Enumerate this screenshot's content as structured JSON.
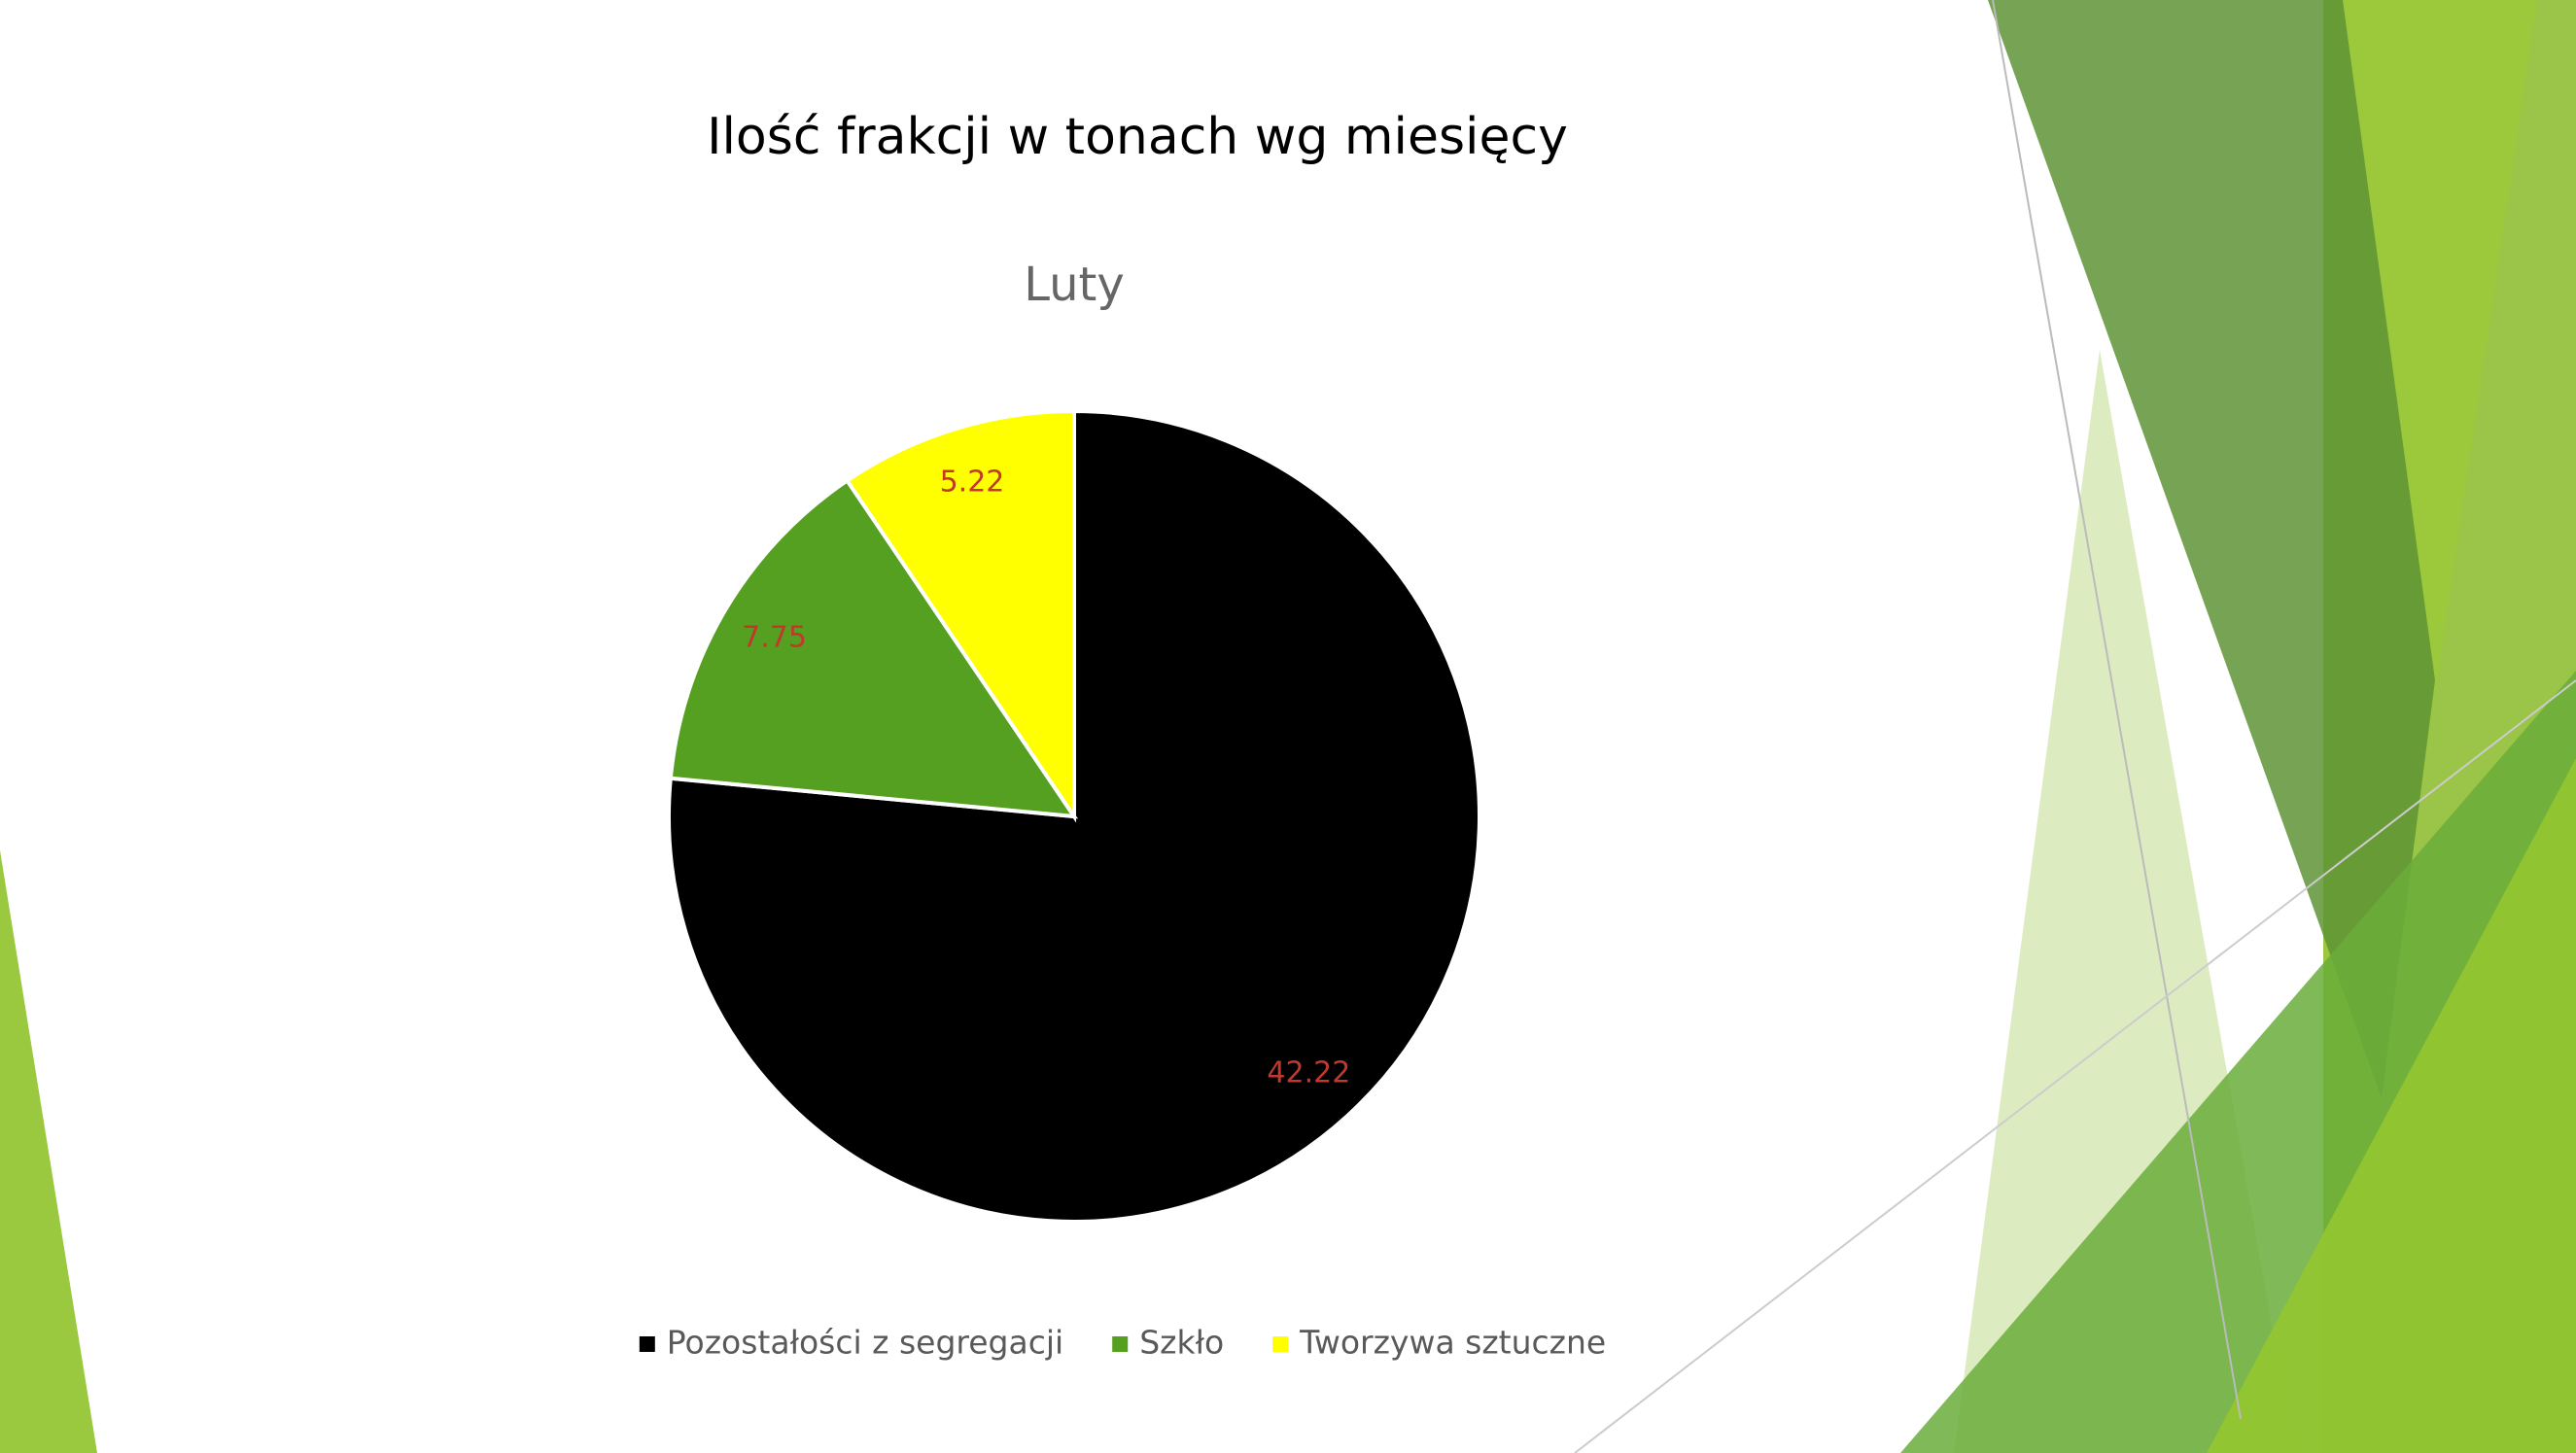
{
  "chart_data": {
    "type": "pie",
    "title": "Ilość frakcji w tonach wg miesięcy",
    "subtitle": "Luty",
    "categories": [
      "Pozostałości z segregacji",
      "Szkło",
      "Tworzywa sztuczne"
    ],
    "values": [
      42.22,
      7.75,
      5.22
    ],
    "colors": [
      "#000000",
      "#55a021",
      "#ffff00"
    ],
    "legend": "bottom"
  }
}
